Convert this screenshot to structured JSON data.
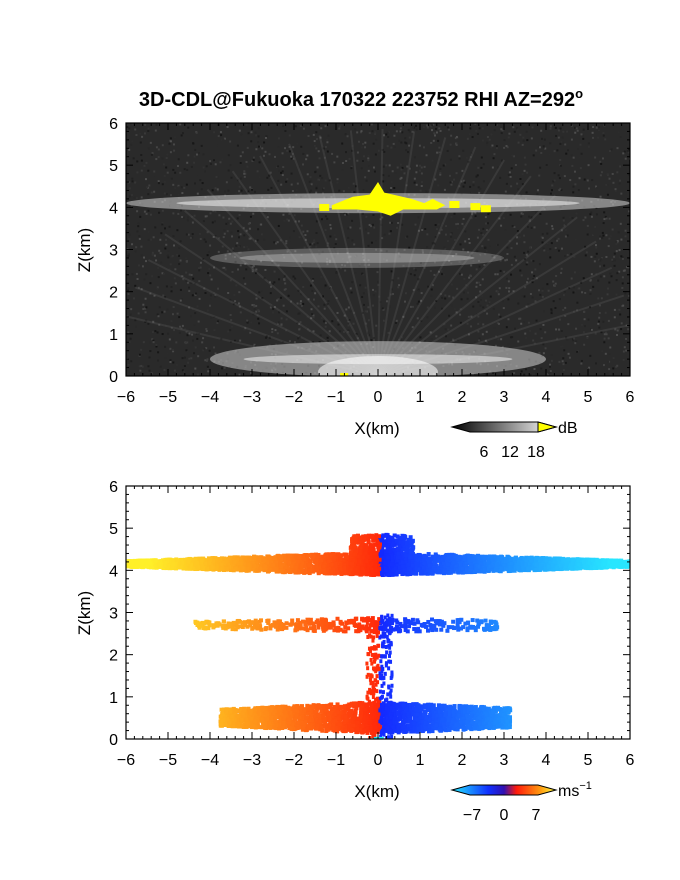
{
  "chart_data": [
    {
      "type": "heatmap",
      "title": "3D-CDL@Fukuoka 170322 223752 RHI AZ=292",
      "title_superscript": "o",
      "xlabel": "X(km)",
      "ylabel": "Z(km)",
      "xlim": [
        -6,
        6
      ],
      "ylim": [
        0,
        6
      ],
      "x_ticks": [
        "-6",
        "-5",
        "-4",
        "-3",
        "-2",
        "-1",
        "0",
        "1",
        "2",
        "3",
        "4",
        "5",
        "6"
      ],
      "y_ticks": [
        "0",
        "1",
        "2",
        "3",
        "4",
        "5",
        "6"
      ],
      "colorbar": {
        "unit": "dB",
        "ticks": [
          "6",
          "12",
          "18"
        ]
      },
      "colors": {
        "background": "#2a2a2a",
        "saturation": "#ffff00"
      },
      "layers": [
        {
          "name": "cloud-base",
          "z_center": 4.1,
          "x_range": [
            -6,
            6
          ],
          "intensity": "high"
        },
        {
          "name": "mid-layer",
          "z_center": 2.8,
          "x_range": [
            -4,
            3
          ],
          "intensity": "medium"
        },
        {
          "name": "near-ground",
          "z_center": 0.4,
          "x_range": [
            -4,
            4
          ],
          "intensity": "high"
        }
      ],
      "saturated_region": {
        "x_range": [
          -1.2,
          2.5
        ],
        "z_range": [
          3.8,
          4.6
        ]
      }
    },
    {
      "type": "heatmap",
      "xlabel": "X(km)",
      "ylabel": "Z(km)",
      "xlim": [
        -6,
        6
      ],
      "ylim": [
        0,
        6
      ],
      "x_ticks": [
        "-6",
        "-5",
        "-4",
        "-3",
        "-2",
        "-1",
        "0",
        "1",
        "2",
        "3",
        "4",
        "5",
        "6"
      ],
      "y_ticks": [
        "0",
        "1",
        "2",
        "3",
        "4",
        "5",
        "6"
      ],
      "colorbar": {
        "unit": "ms",
        "unit_superscript": "−1",
        "ticks": [
          "−7",
          "0",
          "7"
        ]
      },
      "colors": {
        "positive_high": "#ffff33",
        "positive": "#ff2a0a",
        "zero": "#2020ff",
        "negative_high": "#22e8ff"
      },
      "layers": [
        {
          "name": "cloud-base",
          "z_center": 4.2,
          "x_range": [
            -6,
            6
          ]
        },
        {
          "name": "mid-layer",
          "z_center": 2.8,
          "x_range": [
            -4.5,
            2.8
          ]
        },
        {
          "name": "near-ground",
          "z_center": 0.55,
          "x_range": [
            -4,
            3.2
          ]
        }
      ]
    }
  ]
}
